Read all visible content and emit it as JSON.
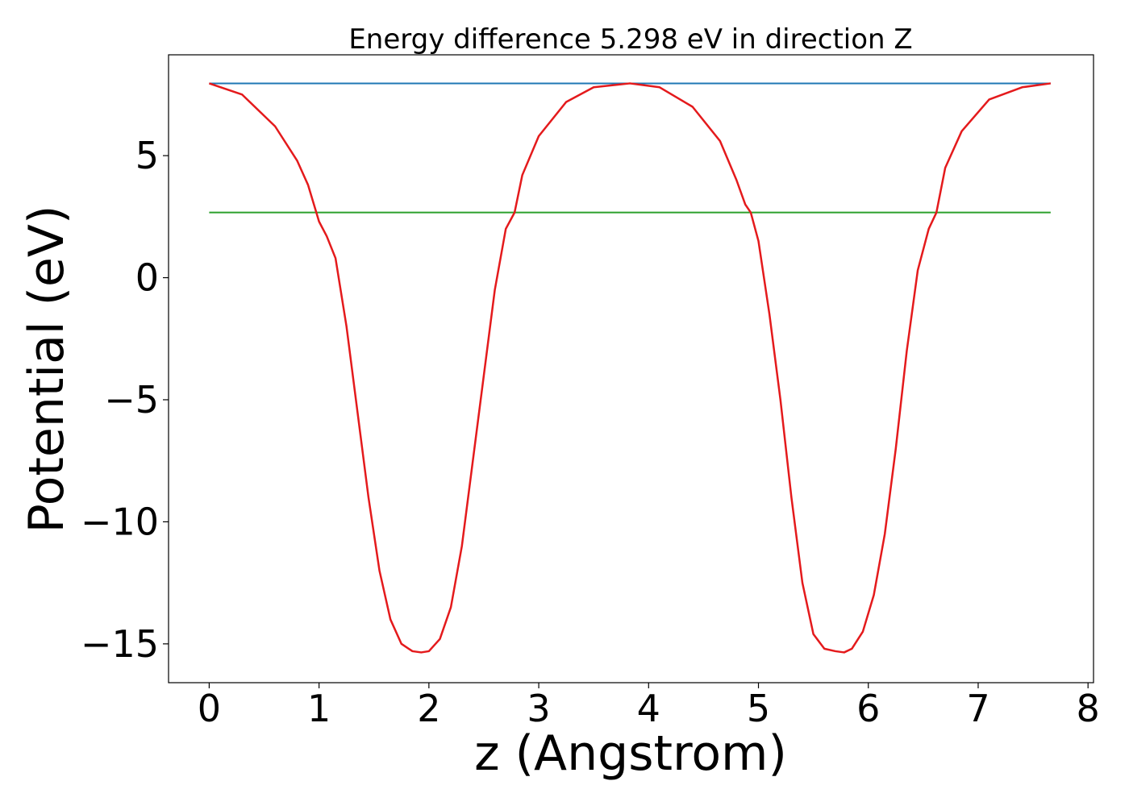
{
  "chart_data": {
    "type": "line",
    "title": "Energy difference 5.298 eV in direction Z",
    "xlabel": "z (Angstrom)",
    "ylabel": "Potential (eV)",
    "xlim": [
      -0.37,
      8.05
    ],
    "ylim": [
      -16.59,
      9.13
    ],
    "xticks": [
      0,
      1,
      2,
      3,
      4,
      5,
      6,
      7,
      8
    ],
    "xtick_labels": [
      "0",
      "1",
      "2",
      "3",
      "4",
      "5",
      "6",
      "7",
      "8"
    ],
    "yticks": [
      5,
      0,
      -5,
      -10,
      -15
    ],
    "ytick_labels": [
      "5",
      "0",
      "−5",
      "−10",
      "−15"
    ],
    "grid": false,
    "legend": false,
    "series": [
      {
        "color": "#1f77b4",
        "x": [
          0,
          7.66
        ],
        "y": [
          7.96,
          7.96
        ]
      },
      {
        "color": "#2ca02c",
        "x": [
          0,
          7.66
        ],
        "y": [
          2.67,
          2.67
        ]
      },
      {
        "color": "#e41a1c",
        "x": [
          0,
          0.3,
          0.6,
          0.8,
          0.9,
          1.0,
          1.07,
          1.15,
          1.25,
          1.35,
          1.45,
          1.55,
          1.65,
          1.75,
          1.85,
          1.93,
          2.0,
          2.1,
          2.2,
          2.3,
          2.4,
          2.5,
          2.6,
          2.7,
          2.78,
          2.85,
          3.0,
          3.25,
          3.5,
          3.83,
          4.1,
          4.4,
          4.65,
          4.8,
          4.88,
          4.93,
          5.0,
          5.1,
          5.2,
          5.3,
          5.4,
          5.5,
          5.6,
          5.7,
          5.78,
          5.85,
          5.95,
          6.05,
          6.15,
          6.25,
          6.35,
          6.45,
          6.55,
          6.62,
          6.7,
          6.85,
          7.1,
          7.4,
          7.66
        ],
        "y": [
          7.96,
          7.5,
          6.2,
          4.8,
          3.8,
          2.3,
          1.7,
          0.8,
          -2.0,
          -5.5,
          -9.0,
          -12.0,
          -14.0,
          -15.0,
          -15.3,
          -15.35,
          -15.3,
          -14.8,
          -13.5,
          -11.0,
          -7.5,
          -4.0,
          -0.5,
          2.0,
          2.67,
          4.2,
          5.8,
          7.2,
          7.8,
          7.96,
          7.8,
          7.0,
          5.6,
          4.0,
          3.0,
          2.67,
          1.5,
          -1.5,
          -5.0,
          -9.0,
          -12.5,
          -14.6,
          -15.2,
          -15.3,
          -15.35,
          -15.2,
          -14.5,
          -13.0,
          -10.5,
          -7.0,
          -3.0,
          0.3,
          2.0,
          2.67,
          4.5,
          6.0,
          7.3,
          7.8,
          7.96
        ]
      }
    ]
  }
}
